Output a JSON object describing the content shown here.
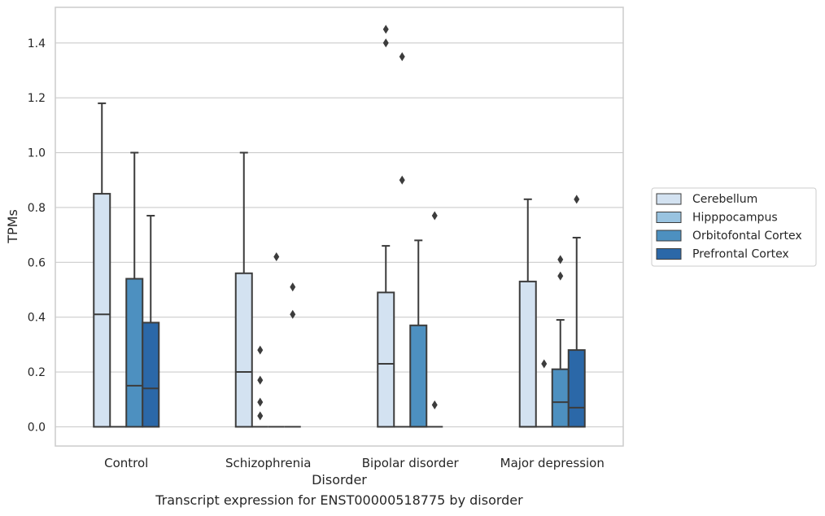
{
  "caption": "Transcript expression for ENST00000518775 by disorder",
  "chart_data": {
    "type": "box",
    "xlabel": "Disorder",
    "ylabel": "TPMs",
    "categories": [
      "Control",
      "Schizophrenia",
      "Bipolar disorder",
      "Major depression"
    ],
    "ylim": [
      -0.07,
      1.53
    ],
    "yticks": [
      0.0,
      0.2,
      0.4,
      0.6,
      0.8,
      1.0,
      1.2,
      1.4
    ],
    "grid": "horizontal",
    "legend_position": "right",
    "series": [
      {
        "name": "Cerebellum",
        "color": "#d3e2f1",
        "boxes": [
          {
            "whislo": 0.0,
            "q1": 0.0,
            "med": 0.41,
            "q3": 0.85,
            "whishi": 1.18,
            "fliers": []
          },
          {
            "whislo": 0.0,
            "q1": 0.0,
            "med": 0.2,
            "q3": 0.56,
            "whishi": 1.0,
            "fliers": []
          },
          {
            "whislo": 0.0,
            "q1": 0.0,
            "med": 0.23,
            "q3": 0.49,
            "whishi": 0.66,
            "fliers": [
              1.4,
              1.45
            ]
          },
          {
            "whislo": 0.0,
            "q1": 0.0,
            "med": 0.0,
            "q3": 0.53,
            "whishi": 0.83,
            "fliers": []
          }
        ]
      },
      {
        "name": "Hipppocampus",
        "color": "#99c3e0",
        "boxes": [
          {
            "whislo": 0.0,
            "q1": 0.0,
            "med": 0.0,
            "q3": 0.0,
            "whishi": 0.0,
            "fliers": []
          },
          {
            "whislo": 0.0,
            "q1": 0.0,
            "med": 0.0,
            "q3": 0.0,
            "whishi": 0.0,
            "fliers": [
              0.04,
              0.09,
              0.17,
              0.28
            ]
          },
          {
            "whislo": 0.0,
            "q1": 0.0,
            "med": 0.0,
            "q3": 0.0,
            "whishi": 0.0,
            "fliers": [
              0.9,
              1.35
            ]
          },
          {
            "whislo": 0.0,
            "q1": 0.0,
            "med": 0.0,
            "q3": 0.0,
            "whishi": 0.0,
            "fliers": [
              0.23
            ]
          }
        ]
      },
      {
        "name": "Orbitofontal Cortex",
        "color": "#4d90c0",
        "boxes": [
          {
            "whislo": 0.0,
            "q1": 0.0,
            "med": 0.15,
            "q3": 0.54,
            "whishi": 1.0,
            "fliers": []
          },
          {
            "whislo": 0.0,
            "q1": 0.0,
            "med": 0.0,
            "q3": 0.0,
            "whishi": 0.0,
            "fliers": [
              0.62
            ]
          },
          {
            "whislo": 0.0,
            "q1": 0.0,
            "med": 0.0,
            "q3": 0.37,
            "whishi": 0.68,
            "fliers": []
          },
          {
            "whislo": 0.0,
            "q1": 0.0,
            "med": 0.09,
            "q3": 0.21,
            "whishi": 0.39,
            "fliers": [
              0.55,
              0.61
            ]
          }
        ]
      },
      {
        "name": "Prefrontal Cortex",
        "color": "#2b68a8",
        "boxes": [
          {
            "whislo": 0.0,
            "q1": 0.0,
            "med": 0.14,
            "q3": 0.38,
            "whishi": 0.77,
            "fliers": []
          },
          {
            "whislo": 0.0,
            "q1": 0.0,
            "med": 0.0,
            "q3": 0.0,
            "whishi": 0.0,
            "fliers": [
              0.41,
              0.51
            ]
          },
          {
            "whislo": 0.0,
            "q1": 0.0,
            "med": 0.0,
            "q3": 0.0,
            "whishi": 0.0,
            "fliers": [
              0.08,
              0.77
            ]
          },
          {
            "whislo": 0.0,
            "q1": 0.0,
            "med": 0.07,
            "q3": 0.28,
            "whishi": 0.69,
            "fliers": [
              0.83
            ]
          }
        ]
      }
    ]
  }
}
